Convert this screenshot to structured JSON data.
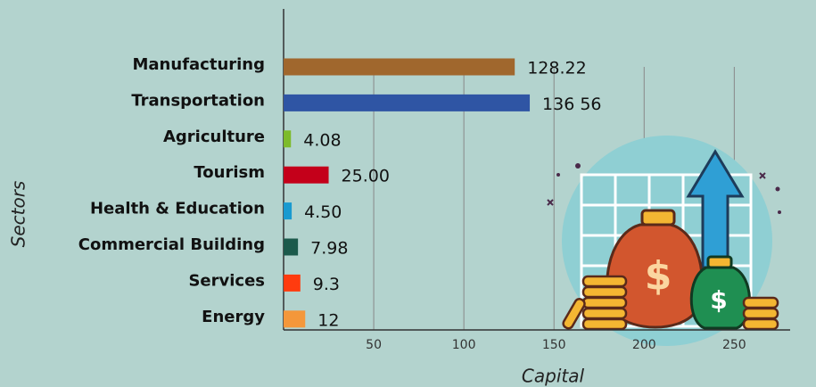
{
  "chart_data": {
    "type": "hbar",
    "y_label": "Sectors",
    "x_label": "Capital",
    "categories": [
      "Manufacturing",
      "Transportation",
      "Agriculture",
      "Tourism",
      "Health & Education",
      "Commercial Building",
      "Services",
      "Energy"
    ],
    "values": [
      128.22,
      136.56,
      4.08,
      25,
      4.5,
      7.98,
      9.3,
      12
    ],
    "value_labels": [
      "128.22",
      "136 56",
      "4.08",
      "25.00",
      "4.50",
      "7.98",
      "9.3",
      "12"
    ],
    "colors": [
      "#a0672d",
      "#2f55a4",
      "#7dbb2a",
      "#c4001a",
      "#1a9ad0",
      "#1c5a4c",
      "#ff3b0f",
      "#f4973a"
    ],
    "xlim": [
      0,
      280
    ],
    "xticks": [
      50,
      100,
      150,
      200,
      250
    ],
    "grid": true
  }
}
